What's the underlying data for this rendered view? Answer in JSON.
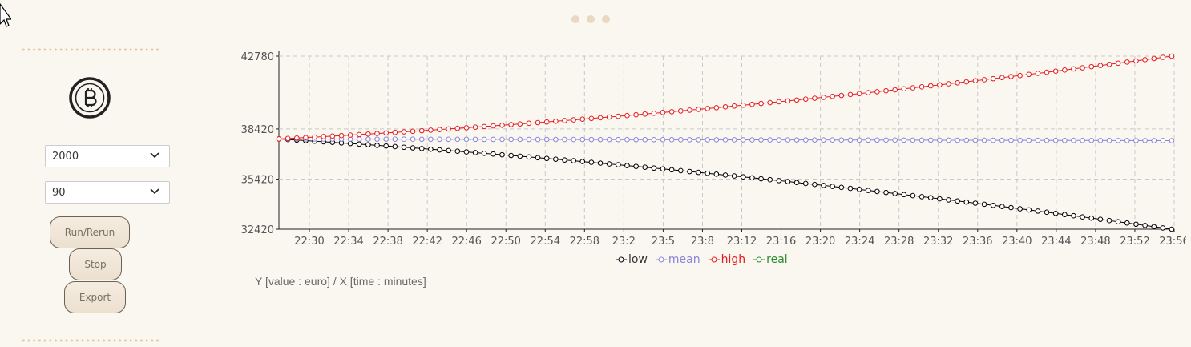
{
  "sidebar": {
    "logo_icon": "bitcoin-icon",
    "select_amount": {
      "value": "2000"
    },
    "select_period": {
      "value": "90"
    },
    "buttons": {
      "run": "Run/Rerun",
      "stop": "Stop",
      "export": "Export"
    }
  },
  "menu_icon": "more-dots-icon",
  "caption": "Y [value : euro] / X [time : minutes]",
  "legend": [
    {
      "label": "low",
      "color": "#000000"
    },
    {
      "label": "mean",
      "color": "#8b84d7"
    },
    {
      "label": "high",
      "color": "#e8191c"
    },
    {
      "label": "real",
      "color": "#2e8b2e"
    }
  ],
  "chart_data": {
    "type": "line",
    "x_tick_labels": [
      "22:30",
      "22:34",
      "22:38",
      "22:42",
      "22:46",
      "22:50",
      "22:54",
      "22:58",
      "23:2",
      "23:5",
      "23:8",
      "23:12",
      "23:16",
      "23:20",
      "23:24",
      "23:28",
      "23:32",
      "23:36",
      "23:40",
      "23:44",
      "23:48",
      "23:52",
      "23:56"
    ],
    "y_ticks": [
      32420,
      35420,
      38420,
      42780
    ],
    "ylim": [
      32420,
      42780
    ],
    "x_minutes_range": [
      1346,
      1436
    ],
    "series": [
      {
        "name": "low",
        "color": "#000000",
        "start": 37820,
        "end": 32420,
        "shape": "concave"
      },
      {
        "name": "mean",
        "color": "#8b84d7",
        "start": 37820,
        "end": 37720,
        "shape": "flat"
      },
      {
        "name": "high",
        "color": "#e8191c",
        "start": 37820,
        "end": 42780,
        "shape": "convex"
      },
      {
        "name": "real",
        "color": "#2e8b2e",
        "values": []
      }
    ],
    "grid": true,
    "legend_position": "bottom"
  }
}
